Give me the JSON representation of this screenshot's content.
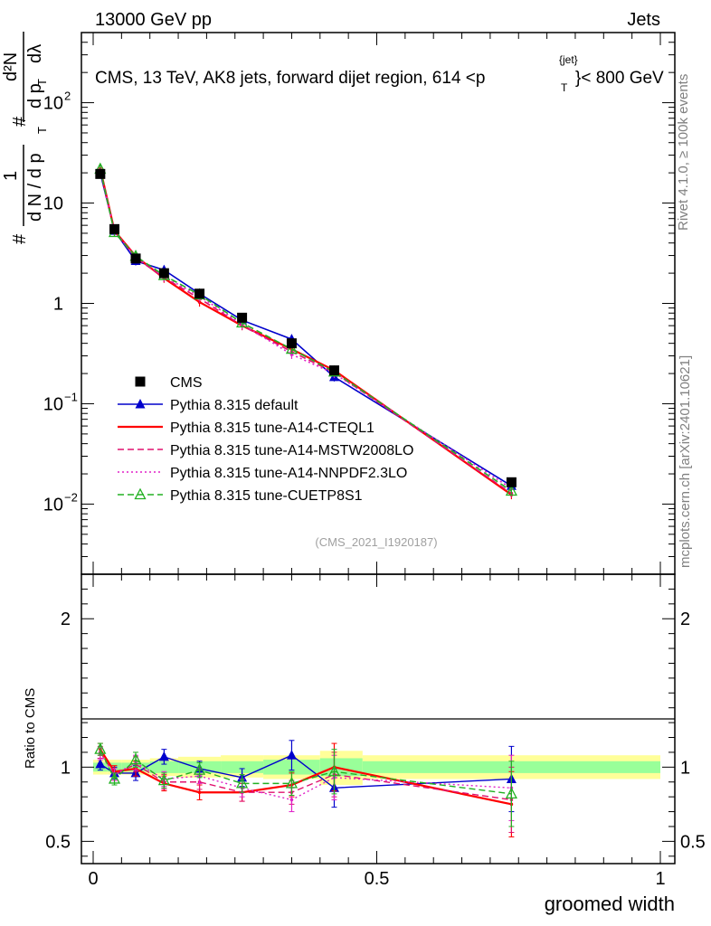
{
  "header": {
    "left": "13000 GeV pp",
    "right": "Jets"
  },
  "title": "CMS, 13 TeV, AK8 jets, forward dijet region, 614 <p",
  "title_sup": "{jet}",
  "title_sub": "T",
  "title_tail": "}< 800 GeV",
  "side_label_top": "Rivet 4.1.0, ≥ 100k events",
  "side_label_bottom": "mcplots.cern.ch [arXiv:2401.10621]",
  "watermark": "(CMS_2021_I1920187)",
  "y_axis_label": {
    "frac_num_hash": "#",
    "frac_num": "1",
    "frac_den": "d N / d p",
    "frac_den_sub": "T",
    "second_num_hash": "#",
    "second_num": "d²N",
    "second_den": "d p",
    "second_den_sub": "T",
    "second_den_tail": "dλ"
  },
  "ratio_ylabel": "Ratio to CMS",
  "x_axis_label": "groomed width",
  "chart_data": [
    {
      "type": "line",
      "panel": "main",
      "yscale": "log",
      "xlim": [
        0,
        1
      ],
      "ylim": [
        0.002,
        500
      ],
      "x_ticks": [
        "0",
        "0.5",
        "1"
      ],
      "y_ticks": [
        {
          "value": 0.01,
          "base": "10",
          "exp": "−2"
        },
        {
          "value": 0.1,
          "base": "10",
          "exp": "−1"
        },
        {
          "value": 1,
          "base": "1",
          "exp": ""
        },
        {
          "value": 10,
          "base": "10",
          "exp": ""
        },
        {
          "value": 100,
          "base": "10",
          "exp": "2"
        }
      ],
      "x": [
        0.0125,
        0.0375,
        0.075,
        0.125,
        0.1875,
        0.2625,
        0.35,
        0.425,
        0.7375
      ],
      "data": {
        "name": "CMS",
        "values": [
          19.5,
          5.5,
          2.8,
          2.0,
          1.25,
          0.72,
          0.4,
          0.215,
          0.0165
        ]
      },
      "series": [
        {
          "name": "Pythia 8.315 default",
          "color": "#0000cc",
          "style": "solid",
          "marker": "triangle",
          "values": [
            20.0,
            5.3,
            2.65,
            2.15,
            1.25,
            0.68,
            0.44,
            0.185,
            0.0152
          ]
        },
        {
          "name": "Pythia 8.315 tune-A14-CTEQL1",
          "color": "#ff0000",
          "style": "solid",
          "marker": "none",
          "values": [
            22.0,
            5.3,
            2.95,
            1.78,
            1.03,
            0.6,
            0.35,
            0.215,
            0.0124
          ]
        },
        {
          "name": "Pythia 8.315 tune-A14-MSTW2008LO",
          "color": "#e0106e",
          "style": "dashed",
          "marker": "none",
          "values": [
            21.5,
            5.2,
            2.85,
            1.8,
            1.12,
            0.6,
            0.33,
            0.205,
            0.0128
          ]
        },
        {
          "name": "Pythia 8.315 tune-A14-NNPDF2.3LO",
          "color": "#e020c8",
          "style": "dotted",
          "marker": "none",
          "values": [
            21.3,
            5.25,
            2.9,
            1.85,
            1.18,
            0.62,
            0.31,
            0.2,
            0.0143
          ]
        },
        {
          "name": "Pythia 8.315 tune-CUETP8S1",
          "color": "#22b022",
          "style": "dashed",
          "marker": "open-triangle",
          "values": [
            21.8,
            5.1,
            2.95,
            1.9,
            1.22,
            0.64,
            0.35,
            0.208,
            0.0135
          ]
        }
      ],
      "legend_position": "bottom-left"
    },
    {
      "type": "line",
      "panel": "ratio",
      "yscale": "linear",
      "xlim": [
        0,
        1
      ],
      "ylim": [
        0.35,
        2.3
      ],
      "y_ticks": [
        "0.5",
        "1",
        "2"
      ],
      "x_ticks": [
        "0",
        "0.5",
        "1"
      ],
      "band_bins": [
        {
          "x0": 0.0,
          "x1": 0.025,
          "inner": [
            0.97,
            1.03
          ],
          "outer": [
            0.95,
            1.05
          ]
        },
        {
          "x0": 0.025,
          "x1": 0.05,
          "inner": [
            0.97,
            1.03
          ],
          "outer": [
            0.95,
            1.05
          ]
        },
        {
          "x0": 0.05,
          "x1": 0.1,
          "inner": [
            0.97,
            1.03
          ],
          "outer": [
            0.95,
            1.05
          ]
        },
        {
          "x0": 0.1,
          "x1": 0.15,
          "inner": [
            0.96,
            1.04
          ],
          "outer": [
            0.94,
            1.06
          ]
        },
        {
          "x0": 0.15,
          "x1": 0.225,
          "inner": [
            0.96,
            1.04
          ],
          "outer": [
            0.93,
            1.07
          ]
        },
        {
          "x0": 0.225,
          "x1": 0.3,
          "inner": [
            0.96,
            1.04
          ],
          "outer": [
            0.93,
            1.08
          ]
        },
        {
          "x0": 0.3,
          "x1": 0.4,
          "inner": [
            0.95,
            1.05
          ],
          "outer": [
            0.92,
            1.08
          ]
        },
        {
          "x0": 0.4,
          "x1": 0.475,
          "inner": [
            0.94,
            1.06
          ],
          "outer": [
            0.88,
            1.11
          ]
        },
        {
          "x0": 0.475,
          "x1": 1.0,
          "inner": [
            0.96,
            1.04
          ],
          "outer": [
            0.92,
            1.08
          ]
        }
      ],
      "series": [
        {
          "name": "Pythia 8.315 default",
          "color": "#0000cc",
          "style": "solid",
          "marker": "triangle",
          "values": [
            1.02,
            0.96,
            0.96,
            1.07,
            0.99,
            0.93,
            1.08,
            0.86,
            0.92
          ],
          "errors": [
            0.04,
            0.04,
            0.05,
            0.05,
            0.05,
            0.06,
            0.1,
            0.13,
            0.22
          ]
        },
        {
          "name": "Pythia 8.315 tune-A14-CTEQL1",
          "color": "#ff0000",
          "style": "solid",
          "marker": "none",
          "values": [
            1.12,
            0.97,
            0.99,
            0.89,
            0.83,
            0.83,
            0.88,
            1.0,
            0.75
          ],
          "errors": [
            0.04,
            0.04,
            0.05,
            0.05,
            0.05,
            0.06,
            0.08,
            0.16,
            0.22
          ]
        },
        {
          "name": "Pythia 8.315 tune-A14-MSTW2008LO",
          "color": "#e0106e",
          "style": "dashed",
          "marker": "none",
          "values": [
            1.1,
            0.95,
            1.02,
            0.9,
            0.9,
            0.83,
            0.83,
            0.95,
            0.78
          ],
          "errors": [
            0.04,
            0.04,
            0.05,
            0.05,
            0.05,
            0.06,
            0.08,
            0.15,
            0.22
          ]
        },
        {
          "name": "Pythia 8.315 tune-A14-NNPDF2.3LO",
          "color": "#e020c8",
          "style": "dotted",
          "marker": "none",
          "values": [
            1.09,
            0.95,
            1.03,
            0.92,
            0.94,
            0.86,
            0.78,
            0.93,
            0.86
          ],
          "errors": [
            0.04,
            0.04,
            0.05,
            0.05,
            0.05,
            0.06,
            0.08,
            0.15,
            0.22
          ]
        },
        {
          "name": "Pythia 8.315 tune-CUETP8S1",
          "color": "#22b022",
          "style": "dashed",
          "marker": "open-triangle",
          "values": [
            1.12,
            0.92,
            1.05,
            0.91,
            0.98,
            0.89,
            0.89,
            0.97,
            0.82
          ],
          "errors": [
            0.04,
            0.04,
            0.05,
            0.05,
            0.05,
            0.06,
            0.08,
            0.15,
            0.22
          ]
        }
      ]
    }
  ]
}
